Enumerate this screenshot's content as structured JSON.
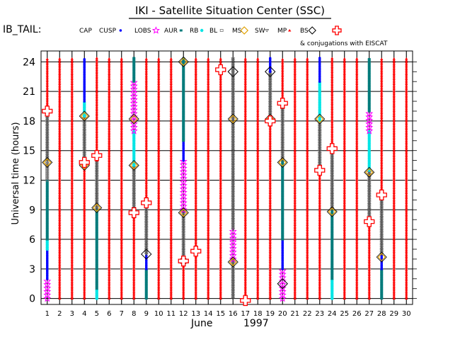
{
  "chart_data": {
    "type": "scatter",
    "title": "IKI - Satellite Situation Center (SSC)",
    "satellite": "IB_TAIL:",
    "legend": {
      "items": [
        {
          "label": "CAP",
          "symbol": "none",
          "color": "#000000"
        },
        {
          "label": "CUSP",
          "symbol": "dot",
          "color": "#0000ff"
        },
        {
          "label": "LOBS",
          "symbol": "star",
          "color": "#ff00ff"
        },
        {
          "label": "AUR",
          "symbol": "square",
          "color": "#007b7b"
        },
        {
          "label": "RB",
          "symbol": "asterisk",
          "color": "#00e5e5"
        },
        {
          "label": "BL",
          "symbol": "square-open",
          "color": "#777777"
        },
        {
          "label": "MS",
          "symbol": "diamond",
          "color": "#e0a000"
        },
        {
          "label": "SW",
          "symbol": "triangle-down",
          "color": "#555555"
        },
        {
          "label": "MP",
          "symbol": "asterisk",
          "color": "#ff0000"
        },
        {
          "label": "BS",
          "symbol": "diamond-open",
          "color": "#000000"
        }
      ],
      "eiscat_label": "& conjugations with EISCAT",
      "eiscat_color": "#ff0000"
    },
    "xlabel_month": "June",
    "xlabel_year": "1997",
    "ylabel": "Universal time (hours)",
    "xlim": [
      1,
      30
    ],
    "ylim": [
      0,
      24
    ],
    "x_ticks": [
      1,
      2,
      3,
      4,
      5,
      6,
      7,
      8,
      9,
      10,
      11,
      12,
      13,
      14,
      15,
      16,
      17,
      18,
      19,
      20,
      21,
      22,
      23,
      24,
      25,
      26,
      27,
      28,
      29,
      30
    ],
    "y_ticks": [
      0,
      3,
      6,
      9,
      12,
      15,
      18,
      21,
      24
    ],
    "grid": true,
    "columns": [
      {
        "day": 1,
        "segments": [
          {
            "from": 0,
            "to": 2,
            "region": "LOBS"
          },
          {
            "from": 2,
            "to": 5,
            "region": "CUSP"
          },
          {
            "from": 5,
            "to": 6,
            "region": "RB"
          },
          {
            "from": 6,
            "to": 12,
            "region": "AUR"
          },
          {
            "from": 12,
            "to": 14,
            "region": "BL"
          },
          {
            "from": 14,
            "to": 19,
            "region": "SW"
          },
          {
            "from": 19,
            "to": 24.4,
            "region": "MP"
          }
        ]
      },
      {
        "day": 2,
        "segments": [
          {
            "from": 0,
            "to": 24.4,
            "region": "MP"
          }
        ]
      },
      {
        "day": 3,
        "segments": [
          {
            "from": 0,
            "to": 24.4,
            "region": "MP"
          }
        ]
      },
      {
        "day": 4,
        "segments": [
          {
            "from": 0,
            "to": 13.5,
            "region": "MP"
          },
          {
            "from": 13.5,
            "to": 18.5,
            "region": "SW"
          },
          {
            "from": 18.5,
            "to": 20,
            "region": "RB"
          },
          {
            "from": 20,
            "to": 24.4,
            "region": "CUSP"
          }
        ]
      },
      {
        "day": 5,
        "segments": [
          {
            "from": 0,
            "to": 1,
            "region": "RB"
          },
          {
            "from": 1,
            "to": 9,
            "region": "AUR"
          },
          {
            "from": 9,
            "to": 14,
            "region": "SW"
          },
          {
            "from": 14,
            "to": 24.4,
            "region": "MP"
          }
        ]
      },
      {
        "day": 6,
        "segments": [
          {
            "from": 0,
            "to": 24.4,
            "region": "MP"
          }
        ]
      },
      {
        "day": 7,
        "segments": [
          {
            "from": 0,
            "to": 24.4,
            "region": "MP"
          }
        ]
      },
      {
        "day": 8,
        "segments": [
          {
            "from": 0,
            "to": 9,
            "region": "MP"
          },
          {
            "from": 9,
            "to": 13.5,
            "region": "SW"
          },
          {
            "from": 13.5,
            "to": 17,
            "region": "RB"
          },
          {
            "from": 17,
            "to": 22,
            "region": "LOBS"
          },
          {
            "from": 22,
            "to": 24.4,
            "region": "AUR"
          }
        ]
      },
      {
        "day": 9,
        "segments": [
          {
            "from": 0,
            "to": 3,
            "region": "AUR"
          },
          {
            "from": 3,
            "to": 4.5,
            "region": "CUSP"
          },
          {
            "from": 4.5,
            "to": 9.5,
            "region": "SW"
          },
          {
            "from": 9.5,
            "to": 24.4,
            "region": "MP"
          }
        ]
      },
      {
        "day": 10,
        "segments": [
          {
            "from": 0,
            "to": 24.4,
            "region": "MP"
          }
        ]
      },
      {
        "day": 11,
        "segments": [
          {
            "from": 0,
            "to": 24.4,
            "region": "MP"
          }
        ]
      },
      {
        "day": 12,
        "segments": [
          {
            "from": 0,
            "to": 4,
            "region": "MP"
          },
          {
            "from": 4,
            "to": 9,
            "region": "SW"
          },
          {
            "from": 9,
            "to": 14,
            "region": "LOBS"
          },
          {
            "from": 14,
            "to": 16,
            "region": "CUSP"
          },
          {
            "from": 16,
            "to": 24.4,
            "region": "AUR"
          }
        ]
      },
      {
        "day": 13,
        "segments": [
          {
            "from": 0,
            "to": 24.4,
            "region": "MP"
          }
        ]
      },
      {
        "day": 14,
        "segments": [
          {
            "from": 0,
            "to": 24.4,
            "region": "MP"
          }
        ]
      },
      {
        "day": 15,
        "segments": [
          {
            "from": 0,
            "to": 24.4,
            "region": "MP"
          }
        ]
      },
      {
        "day": 16,
        "segments": [
          {
            "from": 0,
            "to": 4,
            "region": "SW"
          },
          {
            "from": 4,
            "to": 7,
            "region": "LOBS"
          },
          {
            "from": 7,
            "to": 18,
            "region": "SW"
          },
          {
            "from": 18,
            "to": 24.4,
            "region": "SW"
          }
        ]
      },
      {
        "day": 17,
        "segments": [
          {
            "from": 0,
            "to": 24.4,
            "region": "MP"
          }
        ]
      },
      {
        "day": 18,
        "segments": [
          {
            "from": 0,
            "to": 24.4,
            "region": "MP"
          }
        ]
      },
      {
        "day": 19,
        "segments": [
          {
            "from": 0,
            "to": 18,
            "region": "MP"
          },
          {
            "from": 18,
            "to": 23,
            "region": "SW"
          },
          {
            "from": 23,
            "to": 24.4,
            "region": "CUSP"
          }
        ]
      },
      {
        "day": 20,
        "segments": [
          {
            "from": 0,
            "to": 3,
            "region": "LOBS"
          },
          {
            "from": 3,
            "to": 6,
            "region": "CUSP"
          },
          {
            "from": 6,
            "to": 14,
            "region": "AUR"
          },
          {
            "from": 14,
            "to": 20,
            "region": "SW"
          },
          {
            "from": 20,
            "to": 24.4,
            "region": "MP"
          }
        ]
      },
      {
        "day": 21,
        "segments": [
          {
            "from": 0,
            "to": 24.4,
            "region": "MP"
          }
        ]
      },
      {
        "day": 22,
        "segments": [
          {
            "from": 0,
            "to": 24.4,
            "region": "MP"
          }
        ]
      },
      {
        "day": 23,
        "segments": [
          {
            "from": 0,
            "to": 13,
            "region": "MP"
          },
          {
            "from": 13,
            "to": 18,
            "region": "SW"
          },
          {
            "from": 18,
            "to": 22,
            "region": "RB"
          },
          {
            "from": 22,
            "to": 24.4,
            "region": "CUSP"
          }
        ]
      },
      {
        "day": 24,
        "segments": [
          {
            "from": 0,
            "to": 2,
            "region": "RB"
          },
          {
            "from": 2,
            "to": 9,
            "region": "AUR"
          },
          {
            "from": 9,
            "to": 15,
            "region": "SW"
          },
          {
            "from": 15,
            "to": 24.4,
            "region": "MP"
          }
        ]
      },
      {
        "day": 25,
        "segments": [
          {
            "from": 0,
            "to": 24.4,
            "region": "MP"
          }
        ]
      },
      {
        "day": 26,
        "segments": [
          {
            "from": 0,
            "to": 24.4,
            "region": "MP"
          }
        ]
      },
      {
        "day": 27,
        "segments": [
          {
            "from": 0,
            "to": 8,
            "region": "MP"
          },
          {
            "from": 8,
            "to": 13,
            "region": "SW"
          },
          {
            "from": 13,
            "to": 17,
            "region": "RB"
          },
          {
            "from": 17,
            "to": 19,
            "region": "LOBS"
          },
          {
            "from": 19,
            "to": 24.4,
            "region": "AUR"
          }
        ]
      },
      {
        "day": 28,
        "segments": [
          {
            "from": 0,
            "to": 3,
            "region": "AUR"
          },
          {
            "from": 3,
            "to": 4.5,
            "region": "CUSP"
          },
          {
            "from": 4.5,
            "to": 10.5,
            "region": "SW"
          },
          {
            "from": 10.5,
            "to": 24.4,
            "region": "MP"
          }
        ]
      },
      {
        "day": 29,
        "segments": [
          {
            "from": 0,
            "to": 24.4,
            "region": "MP"
          }
        ]
      },
      {
        "day": 30,
        "segments": [
          {
            "from": 0,
            "to": 24.4,
            "region": "MP"
          }
        ]
      }
    ],
    "ms_markers": [
      {
        "day": 1,
        "hour": 13.8
      },
      {
        "day": 4,
        "hour": 18.5
      },
      {
        "day": 4,
        "hour": 13.5
      },
      {
        "day": 5,
        "hour": 9.2
      },
      {
        "day": 8,
        "hour": 18.2
      },
      {
        "day": 8,
        "hour": 13.5
      },
      {
        "day": 12,
        "hour": 24
      },
      {
        "day": 12,
        "hour": 8.7
      },
      {
        "day": 12,
        "hour": 3.8
      },
      {
        "day": 16,
        "hour": 18.2
      },
      {
        "day": 16,
        "hour": 3.7
      },
      {
        "day": 19,
        "hour": 18.2
      },
      {
        "day": 20,
        "hour": 13.8
      },
      {
        "day": 23,
        "hour": 18.2
      },
      {
        "day": 24,
        "hour": 8.8
      },
      {
        "day": 27,
        "hour": 12.8
      },
      {
        "day": 28,
        "hour": 4.2
      }
    ],
    "bs_markers": [
      {
        "day": 9,
        "hour": 4.5
      },
      {
        "day": 19,
        "hour": 23
      },
      {
        "day": 20,
        "hour": 1.5
      },
      {
        "day": 16,
        "hour": 23
      }
    ],
    "eiscat_markers": [
      {
        "day": 1,
        "hour": 19
      },
      {
        "day": 4,
        "hour": 13.8
      },
      {
        "day": 5,
        "hour": 14.5
      },
      {
        "day": 8,
        "hour": 8.7
      },
      {
        "day": 9,
        "hour": 9.7
      },
      {
        "day": 12,
        "hour": 3.8
      },
      {
        "day": 13,
        "hour": 4.8
      },
      {
        "day": 15,
        "hour": 23.2
      },
      {
        "day": 17,
        "hour": -0.2
      },
      {
        "day": 19,
        "hour": 18
      },
      {
        "day": 20,
        "hour": 19.8
      },
      {
        "day": 23,
        "hour": 13
      },
      {
        "day": 24,
        "hour": 15.2
      },
      {
        "day": 27,
        "hour": 7.8
      },
      {
        "day": 28,
        "hour": 10.5
      }
    ]
  }
}
